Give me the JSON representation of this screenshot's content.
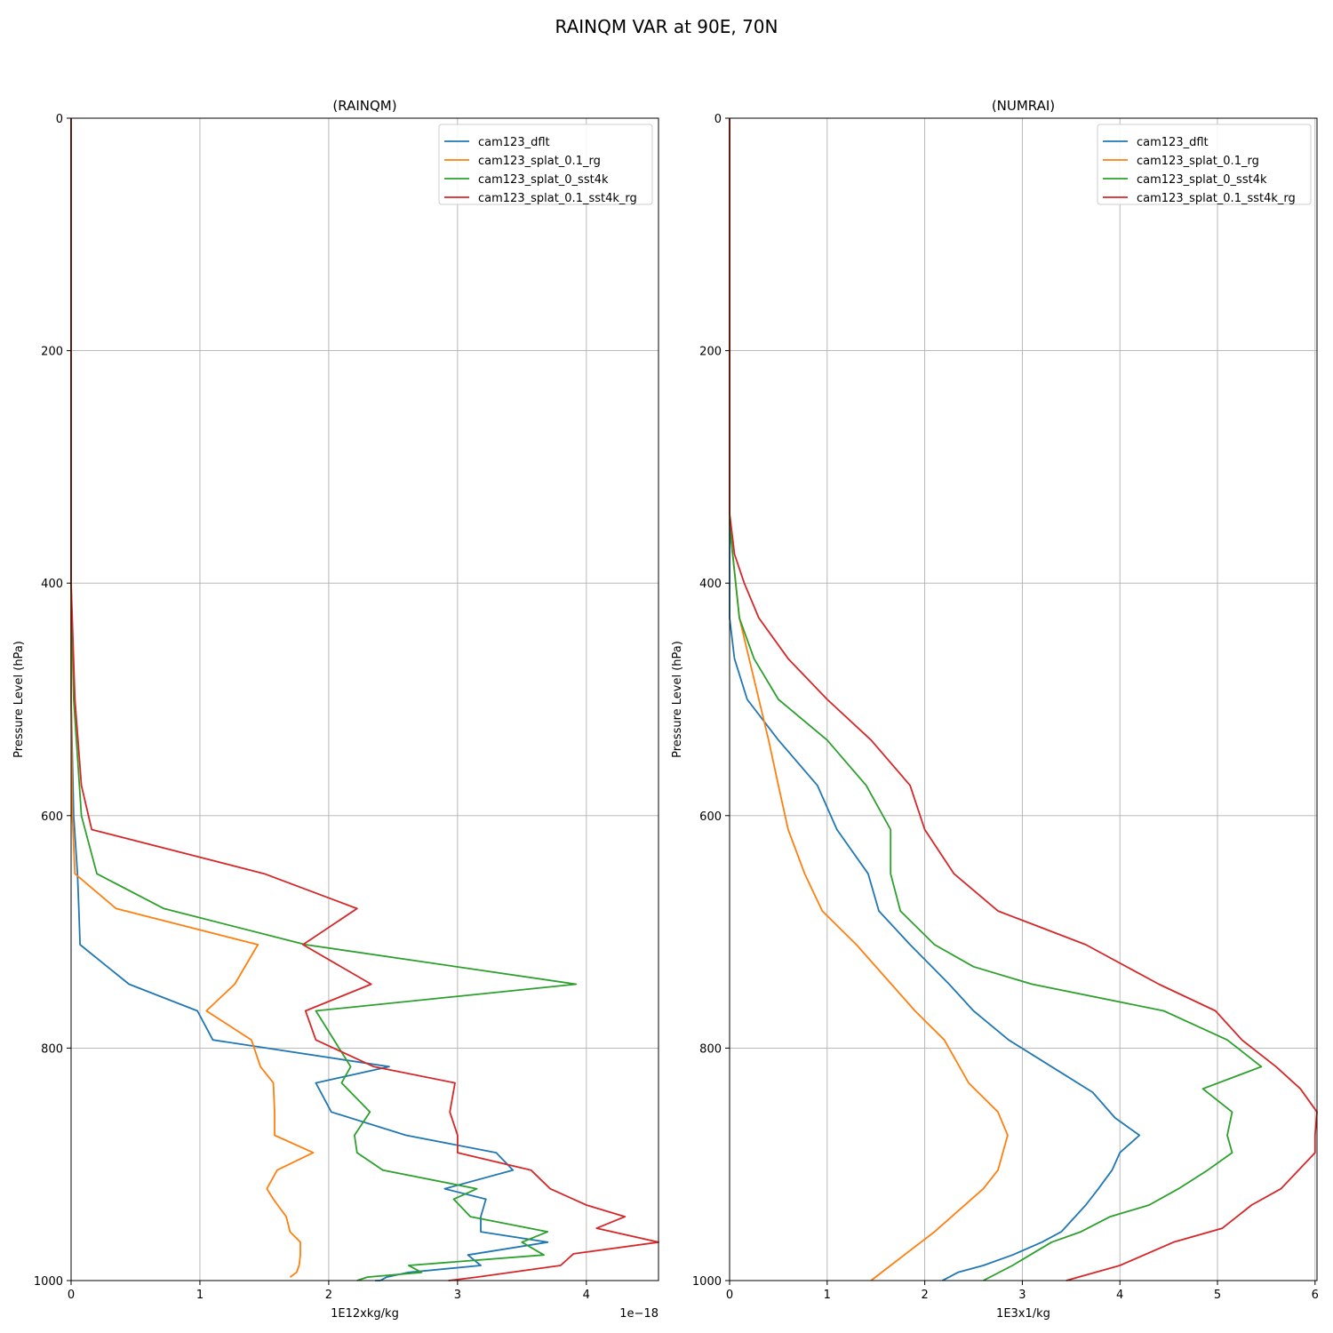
{
  "chart_data": {
    "suptitle": "RAINQM VAR at 90E, 70N",
    "panels": [
      {
        "type": "line",
        "title": "(RAINQM)",
        "xlabel": "1E12xkg/kg",
        "ylabel": "Pressure Level (hPa)",
        "x_offset_text": "1e−18",
        "xlim": [
          0,
          4.56
        ],
        "ylim": [
          1000,
          0
        ],
        "xticks": [
          0,
          1,
          2,
          3,
          4
        ],
        "xtick_labels": [
          "0",
          "1",
          "2",
          "3",
          "4"
        ],
        "yticks": [
          0,
          200,
          400,
          600,
          800,
          1000
        ],
        "ytick_labels": [
          "0",
          "200",
          "400",
          "600",
          "800",
          "1000"
        ],
        "legend_loc": "upper right",
        "series": [
          {
            "name": "cam123_dflt",
            "color": "#1f77b4",
            "x": [
              0,
              0,
              0,
              0,
              0.02,
              0.05,
              0.06,
              0.07,
              0.45,
              0.98,
              1.1,
              2.47,
              1.9,
              2.02,
              2.6,
              3.3,
              3.43,
              2.9,
              3.22,
              3.18,
              3.18,
              3.7,
              3.08,
              3.18,
              2.62,
              2.45,
              2.4,
              2.36
            ],
            "y": [
              0,
              350,
              400,
              500,
              600,
              650,
              680,
              711,
              745,
              768,
              793,
              816,
              830,
              855,
              875,
              890,
              905,
              921,
              930,
              945,
              958,
              967,
              978,
              987,
              993,
              997,
              1000,
              1000
            ]
          },
          {
            "name": "cam123_splat_0.1_rg",
            "color": "#ff7f0e",
            "x": [
              0,
              0,
              0,
              0,
              0.01,
              0.03,
              0.35,
              1.45,
              1.27,
              1.05,
              1.4,
              1.47,
              1.57,
              1.58,
              1.58,
              1.88,
              1.6,
              1.52,
              1.57,
              1.67,
              1.7,
              1.78,
              1.78,
              1.77,
              1.75,
              1.7
            ],
            "y": [
              0,
              350,
              400,
              500,
              600,
              650,
              680,
              711,
              745,
              768,
              793,
              816,
              830,
              855,
              875,
              890,
              905,
              921,
              930,
              945,
              958,
              967,
              978,
              987,
              993,
              997
            ]
          },
          {
            "name": "cam123_splat_0_sst4k",
            "color": "#2ca02c",
            "x": [
              0,
              0,
              0,
              0.02,
              0.08,
              0.2,
              0.72,
              1.82,
              3.92,
              1.9,
              2.17,
              2.1,
              2.32,
              2.2,
              2.22,
              2.42,
              3.15,
              2.97,
              3.1,
              3.7,
              3.5,
              3.67,
              2.62,
              2.72,
              2.3,
              2.22
            ],
            "y": [
              0,
              350,
              400,
              500,
              600,
              650,
              680,
              711,
              745,
              768,
              816,
              830,
              855,
              875,
              890,
              905,
              921,
              930,
              945,
              958,
              967,
              978,
              987,
              993,
              997,
              1000
            ]
          },
          {
            "name": "cam123_splat_0.1_sst4k_rg",
            "color": "#d62728",
            "x": [
              0,
              0,
              0.03,
              0.08,
              0.16,
              1.5,
              2.22,
              1.8,
              2.33,
              1.82,
              1.9,
              2.35,
              2.98,
              2.94,
              3.0,
              3.0,
              3.57,
              3.72,
              4.0,
              4.3,
              4.08,
              4.56,
              3.9,
              3.8,
              3.15,
              2.93
            ],
            "y": [
              0,
              400,
              500,
              574,
              612,
              650,
              680,
              711,
              745,
              768,
              793,
              816,
              830,
              855,
              875,
              890,
              905,
              921,
              935,
              945,
              955,
              967,
              977,
              987,
              997,
              1000
            ]
          }
        ]
      },
      {
        "type": "line",
        "title": "(NUMRAI)",
        "xlabel": "1E3x1/kg",
        "ylabel": "Pressure Level (hPa)",
        "xlim": [
          0,
          6.02
        ],
        "ylim": [
          1000,
          0
        ],
        "xticks": [
          0,
          1,
          2,
          3,
          4,
          5,
          6
        ],
        "xtick_labels": [
          "0",
          "1",
          "2",
          "3",
          "4",
          "5",
          "6"
        ],
        "yticks": [
          0,
          200,
          400,
          600,
          800,
          1000
        ],
        "ytick_labels": [
          "0",
          "200",
          "400",
          "600",
          "800",
          "1000"
        ],
        "legend_loc": "upper right",
        "series": [
          {
            "name": "cam123_dflt",
            "color": "#1f77b4",
            "x": [
              0,
              0,
              0,
              0.05,
              0.18,
              0.5,
              0.9,
              1.1,
              1.42,
              1.53,
              1.85,
              2.25,
              2.5,
              2.86,
              3.3,
              3.72,
              3.95,
              4.2,
              4.0,
              3.92,
              3.78,
              3.65,
              3.4,
              3.2,
              2.9,
              2.6,
              2.34,
              2.25,
              2.18
            ],
            "y": [
              0,
              350,
              430,
              465,
              500,
              535,
              574,
              612,
              650,
              682,
              711,
              745,
              768,
              793,
              816,
              838,
              860,
              875,
              890,
              905,
              921,
              935,
              958,
              967,
              978,
              987,
              993,
              997,
              1000
            ]
          },
          {
            "name": "cam123_splat_0.1_rg",
            "color": "#ff7f0e",
            "x": [
              0,
              0,
              0.1,
              0.2,
              0.4,
              0.5,
              0.6,
              0.77,
              0.95,
              1.3,
              1.9,
              2.2,
              2.45,
              2.75,
              2.85,
              2.75,
              2.6,
              2.1,
              1.65,
              1.45
            ],
            "y": [
              0,
              350,
              430,
              465,
              535,
              574,
              612,
              650,
              682,
              711,
              768,
              793,
              830,
              855,
              875,
              905,
              921,
              958,
              987,
              1000
            ]
          },
          {
            "name": "cam123_splat_0_sst4k",
            "color": "#2ca02c",
            "x": [
              0,
              0,
              0.1,
              0.25,
              0.5,
              1.0,
              1.4,
              1.65,
              1.65,
              1.75,
              2.1,
              2.5,
              3.1,
              4.45,
              5.1,
              5.45,
              4.85,
              5.15,
              5.1,
              5.15,
              4.9,
              4.6,
              4.3,
              3.9,
              3.6,
              3.3,
              2.9,
              2.6
            ],
            "y": [
              0,
              350,
              430,
              465,
              500,
              535,
              574,
              612,
              650,
              682,
              711,
              730,
              745,
              768,
              793,
              816,
              835,
              855,
              875,
              890,
              905,
              921,
              935,
              945,
              958,
              967,
              987,
              1000
            ]
          },
          {
            "name": "cam123_splat_0.1_sst4k_rg",
            "color": "#d62728",
            "x": [
              0,
              0,
              0.05,
              0.15,
              0.3,
              0.6,
              1.0,
              1.45,
              1.85,
              2.0,
              2.3,
              2.75,
              3.65,
              4.4,
              4.98,
              5.25,
              5.6,
              5.85,
              6.02,
              6.0,
              6.0,
              5.65,
              5.35,
              5.05,
              4.55,
              4.0,
              3.45
            ],
            "y": [
              0,
              340,
              375,
              400,
              430,
              465,
              500,
              535,
              574,
              612,
              650,
              682,
              711,
              745,
              768,
              793,
              816,
              835,
              855,
              875,
              890,
              921,
              935,
              955,
              967,
              987,
              1000
            ]
          }
        ]
      }
    ]
  }
}
